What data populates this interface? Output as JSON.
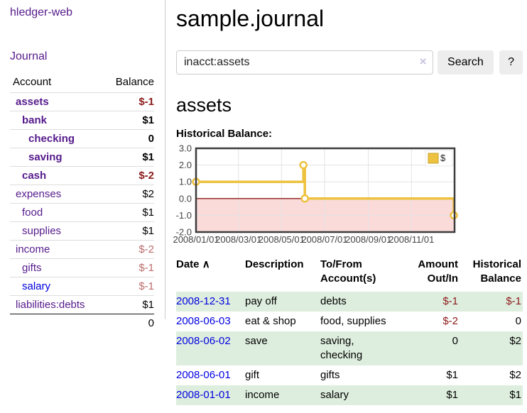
{
  "sidebar": {
    "brand": "hledger-web",
    "journal_link": "Journal",
    "headers": {
      "account": "Account",
      "balance": "Balance"
    },
    "rows": [
      {
        "account": "assets",
        "balance": "$-1",
        "depth": 1,
        "bold": true,
        "negative": "strong"
      },
      {
        "account": "bank",
        "balance": "$1",
        "depth": 2,
        "bold": true,
        "negative": "none"
      },
      {
        "account": "checking",
        "balance": "0",
        "depth": 3,
        "bold": true,
        "negative": "none"
      },
      {
        "account": "saving",
        "balance": "$1",
        "depth": 3,
        "bold": true,
        "negative": "none"
      },
      {
        "account": "cash",
        "balance": "$-2",
        "depth": 2,
        "bold": true,
        "negative": "strong"
      },
      {
        "account": "expenses",
        "balance": "$2",
        "depth": 1,
        "bold": false,
        "negative": "none"
      },
      {
        "account": "food",
        "balance": "$1",
        "depth": 2,
        "bold": false,
        "negative": "none"
      },
      {
        "account": "supplies",
        "balance": "$1",
        "depth": 2,
        "bold": false,
        "negative": "none"
      },
      {
        "account": "income",
        "balance": "$-2",
        "depth": 1,
        "bold": false,
        "negative": "soft"
      },
      {
        "account": "gifts",
        "balance": "$-1",
        "depth": 2,
        "bold": false,
        "negative": "soft"
      },
      {
        "account": "salary",
        "balance": "$-1",
        "depth": 2,
        "bold": false,
        "negative": "soft",
        "link_color": "blue"
      },
      {
        "account": "liabilities:debts",
        "balance": "$1",
        "depth": 1,
        "bold": false,
        "negative": "none"
      }
    ],
    "total": "0"
  },
  "main": {
    "title": "sample.journal",
    "search": {
      "value": "inacct:assets",
      "clear_icon": "×",
      "button_label": "Search",
      "help_label": "?"
    },
    "account_heading": "assets",
    "section_label": "Historical Balance:"
  },
  "register": {
    "headers": {
      "date": "Date",
      "description": "Description",
      "accounts": "To/From Account(s)",
      "amount": "Amount Out/In",
      "balance": "Historical Balance"
    },
    "sort_icon": "∧",
    "rows": [
      {
        "date": "2008-12-31",
        "description": "pay off",
        "accounts": "debts",
        "amount": "$-1",
        "balance": "$-1"
      },
      {
        "date": "2008-06-03",
        "description": "eat & shop",
        "accounts": "food, supplies",
        "amount": "$-2",
        "balance": "0"
      },
      {
        "date": "2008-06-02",
        "description": "save",
        "accounts": "saving, checking",
        "amount": "0",
        "balance": "$2"
      },
      {
        "date": "2008-06-01",
        "description": "gift",
        "accounts": "gifts",
        "amount": "$1",
        "balance": "$2"
      },
      {
        "date": "2008-01-01",
        "description": "income",
        "accounts": "salary",
        "amount": "$1",
        "balance": "$1"
      }
    ]
  },
  "chart_data": {
    "type": "line",
    "title": "Historical Balance:",
    "step": true,
    "x_domain": [
      "2008-01-01",
      "2009-01-01"
    ],
    "ylim": [
      -2,
      3
    ],
    "y_ticks": [
      3,
      2,
      1,
      0,
      -1,
      -2
    ],
    "x_ticks": [
      "2008/01/01",
      "2008/03/01",
      "2008/05/01",
      "2008/07/01",
      "2008/09/01",
      "2008/11/01"
    ],
    "series": [
      {
        "name": "$",
        "color": "#edc240",
        "points": [
          [
            "2008-01-01",
            1
          ],
          [
            "2008-06-01",
            2
          ],
          [
            "2008-06-03",
            0
          ],
          [
            "2008-12-31",
            -1
          ]
        ]
      }
    ],
    "legend_position": "top-right",
    "grid": true,
    "colors": {
      "grid": "#e3e3e3",
      "border": "#3c3c3c",
      "zero_line": "#8b1a1a",
      "negative_region": "#fbdada",
      "legend_border": "#c9a227",
      "tick_text": "#444444"
    }
  },
  "colors": {
    "link_purple": "#551a8b",
    "link_blue": "#0000e0",
    "negative_strong": "#8b1a1a",
    "negative_soft": "#bb6b6b",
    "row_stripe_green": "#deeede"
  }
}
